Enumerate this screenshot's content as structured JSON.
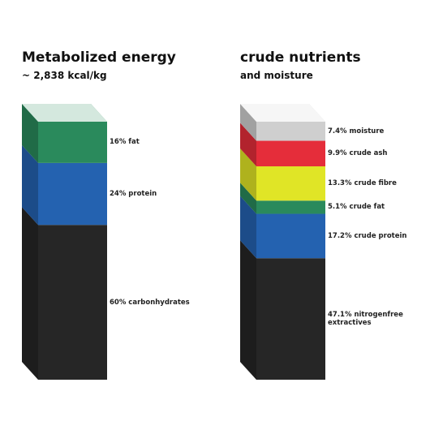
{
  "chart_data": [
    {
      "type": "stacked-bar",
      "title": "Metabolized energy",
      "subtitle": "~ 2,838 kcal/kg",
      "values": [
        60,
        24,
        16
      ],
      "value_labels": [
        "60% carbonhydrates",
        "24% protein",
        "16% fat"
      ],
      "colors": [
        "#262626",
        "#2462b0",
        "#2a8a5c"
      ]
    },
    {
      "type": "stacked-bar",
      "title": "crude nutrients",
      "subtitle": "and moisture",
      "values": [
        47.1,
        17.2,
        5.1,
        13.3,
        9.9,
        7.4
      ],
      "value_labels": [
        "47.1% nitrogenfree extractives",
        "17.2% crude protein",
        "5.1% crude fat",
        "13.3% crude fibre",
        "9.9% crude ash",
        "7.4% moisture"
      ],
      "colors": [
        "#262626",
        "#2462b0",
        "#2a8a5c",
        "#e0e526",
        "#e52d3a",
        "#cfcfcf"
      ]
    }
  ]
}
